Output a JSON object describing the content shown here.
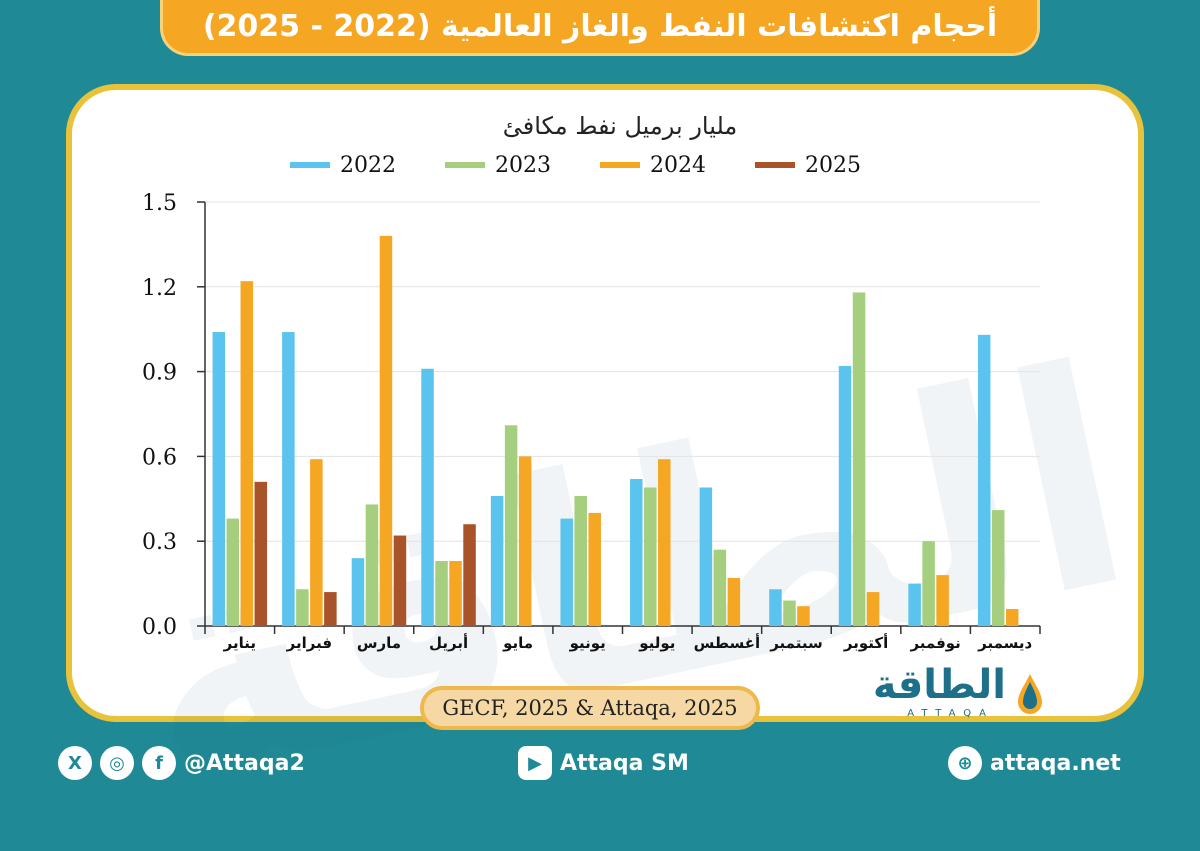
{
  "header": {
    "title": "أحجام اكتشافات النفط والغاز العالمية (2022 - 2025)"
  },
  "colors": {
    "2022": "#5bc4ee",
    "2023": "#a5cf7f",
    "2024": "#f5a623",
    "2025": "#a8532a"
  },
  "chart_data": {
    "type": "bar",
    "title": "أحجام اكتشافات النفط والغاز العالمية (2022 - 2025)",
    "ylabel": "مليار برميل نفط مكافئ",
    "ylim": [
      0,
      1.5
    ],
    "yticks": [
      "0.0",
      "0.3",
      "0.6",
      "0.9",
      "1.2",
      "1.5"
    ],
    "grid": true,
    "legend_position": "top",
    "categories": [
      "يناير",
      "فبراير",
      "مارس",
      "أبريل",
      "مايو",
      "يونيو",
      "يوليو",
      "أغسطس",
      "سبتمبر",
      "أكتوبر",
      "نوفمبر",
      "ديسمبر"
    ],
    "series": [
      {
        "name": "2022",
        "values": [
          1.04,
          1.04,
          0.24,
          0.91,
          0.46,
          0.38,
          0.52,
          0.49,
          0.13,
          0.92,
          0.15,
          1.03
        ]
      },
      {
        "name": "2023",
        "values": [
          0.38,
          0.13,
          0.43,
          0.23,
          0.71,
          0.46,
          0.49,
          0.27,
          0.09,
          1.18,
          0.3,
          0.41
        ]
      },
      {
        "name": "2024",
        "values": [
          1.22,
          0.59,
          1.38,
          0.23,
          0.6,
          0.4,
          0.59,
          0.17,
          0.07,
          0.12,
          0.18,
          0.06
        ]
      },
      {
        "name": "2025",
        "values": [
          0.51,
          0.12,
          0.32,
          0.36,
          null,
          null,
          null,
          null,
          null,
          null,
          null,
          null
        ]
      }
    ]
  },
  "source": "GECF, 2025 & Attaqa, 2025",
  "logo": {
    "text": "الطاقة",
    "sub": "ATTAQA"
  },
  "watermark": "الطاقة",
  "footer": {
    "social_handle": "@Attaqa2",
    "youtube": "Attaqa SM",
    "website": "attaqa.net",
    "icons": [
      "x-icon",
      "instagram-icon",
      "facebook-icon",
      "youtube-icon",
      "globe-icon"
    ]
  }
}
